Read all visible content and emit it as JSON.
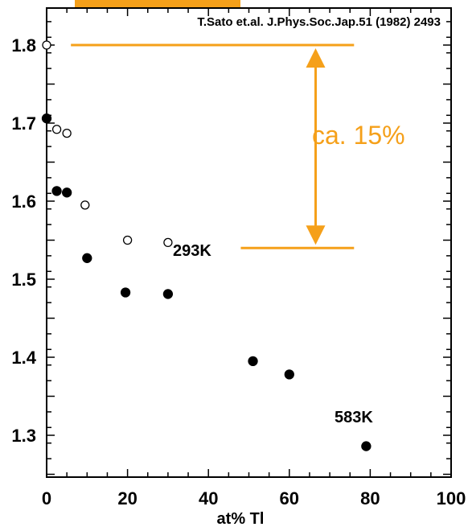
{
  "chart_data": {
    "type": "scatter",
    "title": "",
    "citation": "T.Sato et.al. J.Phys.Soc.Jap.51 (1982) 2493",
    "xlabel": "at% Tl",
    "ylabel": "",
    "xlim": [
      0,
      100
    ],
    "ylim": [
      1.25,
      1.85
    ],
    "x_ticks": [
      "0",
      "20",
      "40",
      "60",
      "80",
      "100"
    ],
    "y_ticks": [
      "1.3",
      "1.4",
      "1.5",
      "1.6",
      "1.7",
      "1.8"
    ],
    "series": [
      {
        "marker": "open-circle",
        "points": [
          {
            "x": 0,
            "y": 1.8
          },
          {
            "x": 2.5,
            "y": 1.692
          },
          {
            "x": 5,
            "y": 1.687
          },
          {
            "x": 9.5,
            "y": 1.595
          },
          {
            "x": 20,
            "y": 1.55
          },
          {
            "x": 30,
            "y": 1.547
          }
        ]
      },
      {
        "marker": "filled-circle",
        "points": [
          {
            "x": 0,
            "y": 1.706
          },
          {
            "x": 2.5,
            "y": 1.613
          },
          {
            "x": 5,
            "y": 1.611
          },
          {
            "x": 10,
            "y": 1.527
          },
          {
            "x": 19.5,
            "y": 1.483
          },
          {
            "x": 30,
            "y": 1.481
          },
          {
            "x": 51,
            "y": 1.395
          },
          {
            "x": 60,
            "y": 1.378
          },
          {
            "x": 79,
            "y": 1.286
          }
        ]
      }
    ],
    "annotations": {
      "label_293": "293K",
      "label_583": "583K",
      "percent": "ca. 15%",
      "accent_color": "#F5A01A",
      "upper_line": {
        "x_start": 6,
        "x_end": 76,
        "y": 1.8
      },
      "lower_line": {
        "x_start": 48,
        "x_end": 76,
        "y": 1.54
      },
      "arrow_x": 66.5
    },
    "grid": false,
    "legend": "none"
  }
}
